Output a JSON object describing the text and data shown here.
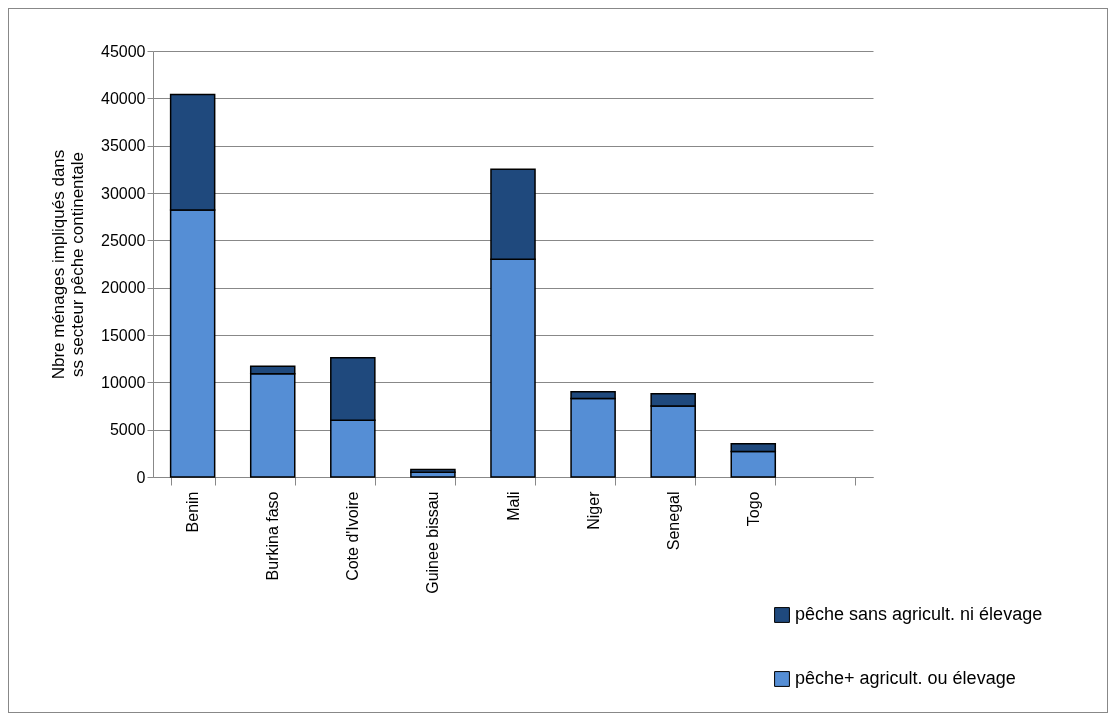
{
  "chart_data": {
    "type": "bar",
    "stacked": true,
    "ylabel": "Nbre ménages impliqués dans ss secteur pêche continentale",
    "categories": [
      "Benin",
      "Burkina faso",
      "Cote d'Ivoire",
      "Guinee bissau",
      "Mali",
      "Niger",
      "Senegal",
      "Togo",
      null
    ],
    "series": [
      {
        "name": "pêche+ agricult. ou élevage",
        "color": "#558ed5",
        "values": [
          28200,
          10900,
          6000,
          500,
          23000,
          8300,
          7500,
          2700,
          null
        ]
      },
      {
        "name": "pêche sans agricult. ni élevage",
        "color": "#1f497d",
        "values": [
          12200,
          800,
          6600,
          300,
          9500,
          700,
          1300,
          800,
          null
        ]
      }
    ],
    "ylim": [
      0,
      45000
    ],
    "yticks": [
      0,
      5000,
      10000,
      15000,
      20000,
      25000,
      30000,
      35000,
      40000,
      45000
    ],
    "grid": "y",
    "legend": "bottom right"
  }
}
